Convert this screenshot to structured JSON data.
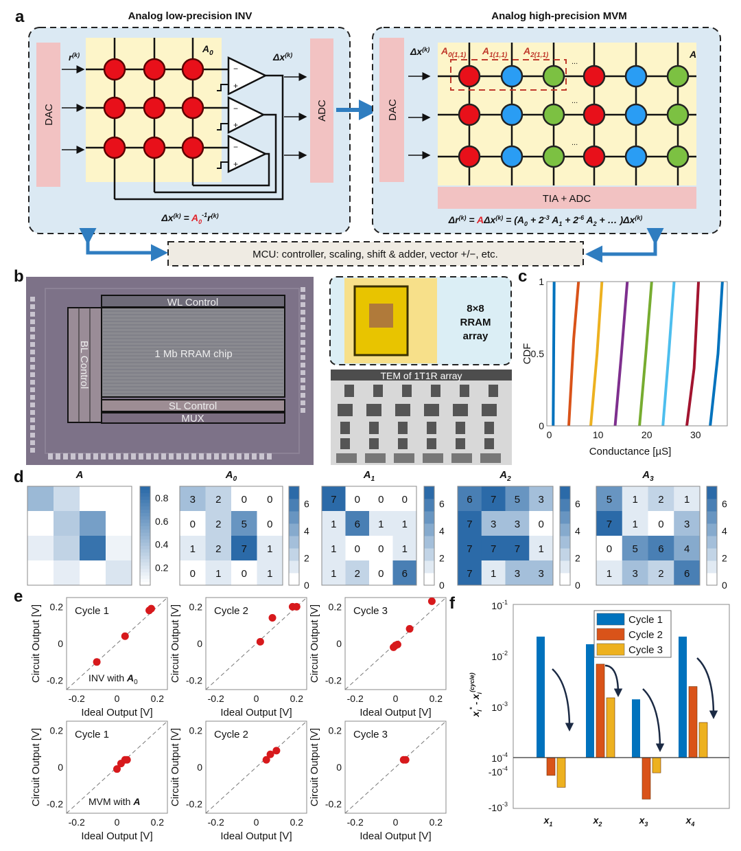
{
  "panel_labels": {
    "a": "a",
    "b": "b",
    "c": "c",
    "d": "d",
    "e": "e",
    "f": "f"
  },
  "panel_a": {
    "left": {
      "title": "Analog low-precision INV",
      "dac": "DAC",
      "adc": "ADC",
      "r_label": "r",
      "r_sup": "(k)",
      "a0_label": "A",
      "a0_sub": "0",
      "dx_label": "Δx",
      "dx_sup": "(k)",
      "formula": {
        "lhs": "Δx",
        "lhs_sup": "(k)",
        "eq": " = ",
        "A": "A",
        "A_sub": "0",
        "A_sup": "-1",
        "r": "r",
        "r_sup": "(k)"
      }
    },
    "right": {
      "title": "Analog high-precision MVM",
      "dac": "DAC",
      "dx_label": "Δx",
      "dx_sup": "(k)",
      "a0_11": "A",
      "a0_11_sub": "0(1,1)",
      "a1_11": "A",
      "a1_11_sub": "1(1,1)",
      "a2_11": "A",
      "a2_11_sub": "2(1,1)",
      "a_label": "A",
      "ellipsis": "...",
      "tia_adc": "TIA + ADC",
      "formula": {
        "lhs": "Δr",
        "lhs_sup": "(k)",
        "eq1": " = ",
        "A": "A",
        "mid": "Δx",
        "mid_sup": "(k)",
        "eq2": " = (",
        "t0": "A",
        "t0_sub": "0",
        "p1": " + 2",
        "p1_sup": "-3",
        "t1": " A",
        "t1_sub": "1",
        "p2": " + 2",
        "p2_sup": "-6",
        "t2": " A",
        "t2_sub": "2",
        "rest": " + … )",
        "end": "Δx",
        "end_sup": "(k)"
      }
    },
    "mcu": "MCU: controller, scaling, shift & adder, vector +/−, etc.",
    "colors": {
      "red_cell": "#e8101a",
      "blue_cell": "#2a9df4",
      "green_cell": "#7cc142",
      "arrow": "#2f7dc0",
      "box_fill": "#dbe9f3",
      "crossbar_fill": "#fdf5c9",
      "converter_fill": "#f2c2c2"
    }
  },
  "panel_b": {
    "wl_control": "WL Control",
    "bl_control": "BL Control",
    "chip": "1 Mb RRAM chip",
    "sl_control": "SL Control",
    "mux": "MUX",
    "array_label": [
      "8×8",
      "RRAM",
      "array"
    ],
    "tem_label": "TEM of 1T1R array"
  },
  "chart_data": [
    {
      "id": "c",
      "type": "line",
      "xlabel": "Conductance [µS]",
      "ylabel": "CDF",
      "xlim": [
        -0.5,
        36.5
      ],
      "ylim": [
        0,
        1
      ],
      "xticks": [
        0,
        10,
        20,
        30
      ],
      "yticks": [
        0,
        0.5,
        1
      ],
      "yticklabels": [
        "0",
        "0.5",
        "1"
      ],
      "series": [
        {
          "x": [
            0.8,
            0.9,
            1.0
          ],
          "y": [
            0,
            0.5,
            1
          ],
          "color": "#0072BD"
        },
        {
          "x": [
            4.0,
            5.0,
            6.0
          ],
          "y": [
            0,
            0.6,
            1
          ],
          "color": "#D95319"
        },
        {
          "x": [
            8.5,
            9.8,
            10.8
          ],
          "y": [
            0,
            0.5,
            1
          ],
          "color": "#EDB120"
        },
        {
          "x": [
            13.5,
            14.8,
            16.0
          ],
          "y": [
            0,
            0.5,
            1
          ],
          "color": "#7E2F8E"
        },
        {
          "x": [
            18.5,
            19.8,
            21.0
          ],
          "y": [
            0,
            0.5,
            1
          ],
          "color": "#77AC30"
        },
        {
          "x": [
            23.3,
            24.5,
            25.6
          ],
          "y": [
            0,
            0.5,
            1
          ],
          "color": "#4DBEEE"
        },
        {
          "x": [
            28.2,
            29.7,
            30.6
          ],
          "y": [
            0,
            0.4,
            1
          ],
          "color": "#A2142F"
        },
        {
          "x": [
            33.0,
            34.6,
            35.5
          ],
          "y": [
            0,
            0.5,
            1
          ],
          "color": "#0072BD"
        }
      ],
      "grid": false
    },
    {
      "id": "d",
      "type": "heatmap",
      "colormap": [
        "#ffffff",
        "#2b6aa8"
      ],
      "matrices": [
        {
          "title": "A",
          "title_sub": "",
          "show_values": false,
          "range": [
            0.05,
            0.9
          ],
          "cbar_ticks": [
            0.2,
            0.4,
            0.6,
            0.8
          ],
          "cbar_ticklabels": [
            "0.2",
            "0.4",
            "0.6",
            "0.8"
          ],
          "values": [
            [
              0.45,
              0.25,
              0.05,
              0.05
            ],
            [
              0.05,
              0.35,
              0.6,
              0.05
            ],
            [
              0.15,
              0.3,
              0.85,
              0.12
            ],
            [
              0.05,
              0.15,
              0.05,
              0.2
            ]
          ]
        },
        {
          "title": "A",
          "title_sub": "0",
          "show_values": true,
          "range": [
            0,
            7.3
          ],
          "cbar_ticks": [
            0,
            2,
            4,
            6
          ],
          "cbar_ticklabels": [
            "0",
            "2",
            "4",
            "6"
          ],
          "values": [
            [
              3,
              2,
              0,
              0
            ],
            [
              0,
              2,
              5,
              0
            ],
            [
              1,
              2,
              7,
              1
            ],
            [
              0,
              1,
              0,
              1
            ]
          ]
        },
        {
          "title": "A",
          "title_sub": "1",
          "show_values": true,
          "range": [
            0,
            7.3
          ],
          "cbar_ticks": [
            0,
            2,
            4,
            6
          ],
          "cbar_ticklabels": [
            "0",
            "2",
            "4",
            "6"
          ],
          "values": [
            [
              7,
              0,
              0,
              0
            ],
            [
              1,
              6,
              1,
              1
            ],
            [
              1,
              0,
              0,
              1
            ],
            [
              1,
              2,
              0,
              6
            ]
          ]
        },
        {
          "title": "A",
          "title_sub": "2",
          "show_values": true,
          "range": [
            0,
            7.3
          ],
          "cbar_ticks": [
            0,
            2,
            4,
            6
          ],
          "cbar_ticklabels": [
            "0",
            "2",
            "4",
            "6"
          ],
          "values": [
            [
              6,
              7,
              5,
              3
            ],
            [
              7,
              3,
              3,
              0
            ],
            [
              7,
              7,
              7,
              1
            ],
            [
              7,
              1,
              3,
              3
            ]
          ]
        },
        {
          "title": "A",
          "title_sub": "3",
          "show_values": true,
          "range": [
            0,
            7.3
          ],
          "cbar_ticks": [
            0,
            2,
            4,
            6
          ],
          "cbar_ticklabels": [
            "0",
            "2",
            "4",
            "6"
          ],
          "values": [
            [
              5,
              1,
              2,
              1
            ],
            [
              7,
              1,
              0,
              3
            ],
            [
              0,
              5,
              6,
              4
            ],
            [
              1,
              3,
              2,
              6
            ]
          ]
        }
      ]
    },
    {
      "id": "e",
      "type": "scatter",
      "xlabel": "Ideal Output [V]",
      "ylabel": "Circuit Output [V]",
      "xlim": [
        -0.25,
        0.25
      ],
      "ylim": [
        -0.25,
        0.25
      ],
      "ticks": [
        -0.2,
        0,
        0.2
      ],
      "ticklabels": [
        "-0.2",
        "0",
        "0.2"
      ],
      "reference_line": "y = x (dashed)",
      "marker_color": "#d7191c",
      "plots": [
        {
          "title": "Cycle 1",
          "note": "INV with ",
          "note_bold": "A",
          "note_sub": "0",
          "points": [
            [
              -0.1,
              -0.1
            ],
            [
              0.04,
              0.04
            ],
            [
              0.16,
              0.18
            ],
            [
              0.17,
              0.19
            ]
          ]
        },
        {
          "title": "Cycle 2",
          "note": "",
          "note_bold": "",
          "note_sub": "",
          "points": [
            [
              0.02,
              0.01
            ],
            [
              0.08,
              0.14
            ],
            [
              0.18,
              0.2
            ],
            [
              0.2,
              0.2
            ]
          ]
        },
        {
          "title": "Cycle 3",
          "note": "",
          "note_bold": "",
          "note_sub": "",
          "points": [
            [
              -0.01,
              -0.02
            ],
            [
              0.0,
              -0.01
            ],
            [
              0.01,
              -0.005
            ],
            [
              0.07,
              0.08
            ],
            [
              0.18,
              0.23
            ]
          ]
        },
        {
          "title": "Cycle 1",
          "note": "MVM with ",
          "note_bold": "A",
          "note_sub": "",
          "points": [
            [
              0.0,
              -0.01
            ],
            [
              0.02,
              0.02
            ],
            [
              0.04,
              0.04
            ],
            [
              0.05,
              0.04
            ]
          ]
        },
        {
          "title": "Cycle 2",
          "note": "",
          "note_bold": "",
          "note_sub": "",
          "points": [
            [
              0.05,
              0.04
            ],
            [
              0.07,
              0.07
            ],
            [
              0.1,
              0.09
            ]
          ]
        },
        {
          "title": "Cycle 3",
          "note": "",
          "note_bold": "",
          "note_sub": "",
          "points": [
            [
              0.04,
              0.04
            ],
            [
              0.05,
              0.04
            ]
          ]
        }
      ]
    },
    {
      "id": "f",
      "type": "bar",
      "yscale": "symlog",
      "ylabel": {
        "x1": "x",
        "x1_sub": "i",
        "x1_sup": "*",
        "minus": " - ",
        "x2": "x",
        "x2_sub": "i",
        "x2_sup": "(cycle)"
      },
      "yticks": [
        0.1,
        0.01,
        0.001,
        0.0001,
        -0.0001,
        -0.001
      ],
      "yticklabels": [
        [
          "10",
          "-1"
        ],
        [
          "10",
          "-2"
        ],
        [
          "10",
          "-3"
        ],
        [
          "10",
          "-4"
        ],
        [
          "-10",
          "-4"
        ],
        [
          "-10",
          "-3"
        ]
      ],
      "categories": [
        {
          "name": "x",
          "sub": "1"
        },
        {
          "name": "x",
          "sub": "2"
        },
        {
          "name": "x",
          "sub": "3"
        },
        {
          "name": "x",
          "sub": "4"
        }
      ],
      "series": [
        {
          "name": "Cycle 1",
          "color": "#0072BD",
          "values": [
            0.024,
            0.017,
            0.0014,
            0.024
          ]
        },
        {
          "name": "Cycle 2",
          "color": "#D95319",
          "values": [
            -0.00013,
            0.0069,
            -0.0006,
            0.0025
          ]
        },
        {
          "name": "Cycle 3",
          "color": "#EDB120",
          "values": [
            -0.00028,
            0.0015,
            -0.00011,
            0.00049
          ]
        }
      ],
      "legend": "top-center",
      "annotations": "curved arrows pointing down in each group (error decreasing per cycle)"
    }
  ]
}
